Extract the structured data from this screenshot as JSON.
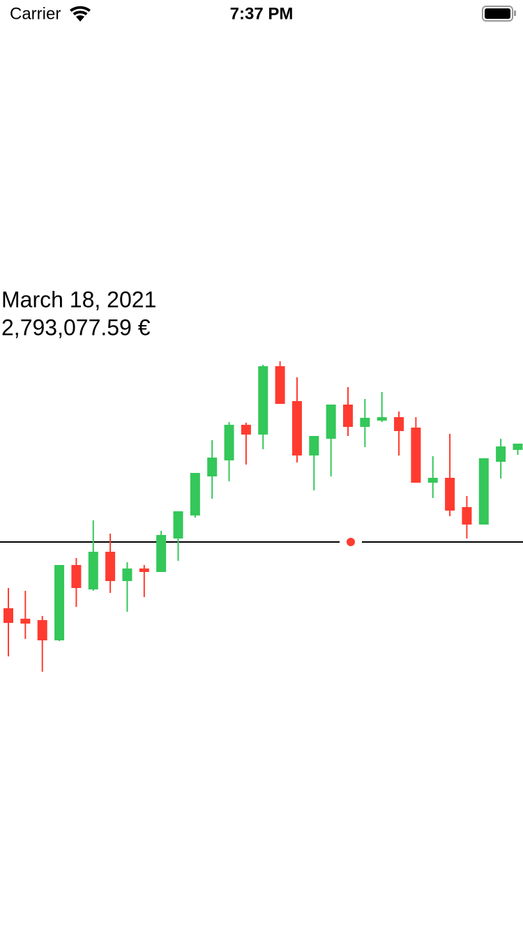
{
  "status_bar": {
    "carrier": "Carrier",
    "time": "7:37 PM"
  },
  "chart_data": {
    "type": "candlestick",
    "annotations": [
      "March 18, 2021",
      "2,793,077.59 €"
    ],
    "open": [
      98,
      83,
      81,
      52,
      160,
      125,
      179,
      137,
      155,
      150,
      198,
      231,
      287,
      310,
      361,
      347,
      445,
      395,
      317,
      341,
      390,
      358,
      367,
      372,
      357,
      278,
      285,
      243,
      218,
      308,
      325
    ],
    "high": [
      127,
      123,
      87,
      160,
      170,
      224,
      205,
      164,
      160,
      209,
      237,
      292,
      339,
      365,
      364,
      447,
      452,
      429,
      345,
      390,
      415,
      398,
      408,
      380,
      372,
      316,
      348,
      259,
      313,
      341,
      334
    ],
    "low": [
      29,
      54,
      7,
      51,
      100,
      123,
      120,
      93,
      114,
      150,
      166,
      228,
      255,
      280,
      304,
      326,
      391,
      307,
      267,
      287,
      345,
      329,
      365,
      317,
      278,
      256,
      230,
      198,
      218,
      284,
      318
    ],
    "close": [
      77,
      76,
      52,
      160,
      127,
      179,
      137,
      155,
      150,
      203,
      237,
      292,
      314,
      361,
      347,
      445,
      391,
      317,
      345,
      390,
      358,
      371,
      372,
      352,
      278,
      285,
      238,
      218,
      313,
      330,
      334
    ],
    "ylim": [
      0,
      460
    ],
    "up_color": "#34c759",
    "down_color": "#ff3b30",
    "crosshair": 193,
    "selected": 20
  }
}
